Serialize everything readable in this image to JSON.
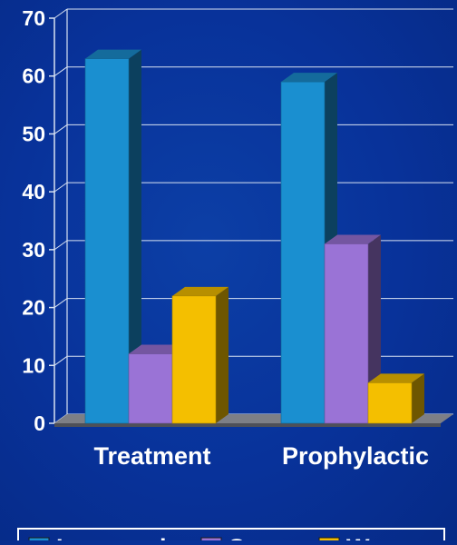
{
  "chart_data": {
    "type": "bar",
    "style": "3d-clustered-column",
    "categories": [
      "Treatment",
      "Prophylactic"
    ],
    "series": [
      {
        "name": "Improved",
        "values": [
          63,
          59
        ],
        "color": "#1a8fd0"
      },
      {
        "name": "Same",
        "values": [
          12,
          31
        ],
        "color": "#9a73d6"
      },
      {
        "name": "Worse",
        "values": [
          22,
          7
        ],
        "color": "#f4bf00"
      }
    ],
    "title": "",
    "xlabel": "",
    "ylabel": "",
    "ylim": [
      0,
      70
    ],
    "yticks": [
      "0",
      "10",
      "20",
      "30",
      "40",
      "50",
      "60",
      "70"
    ],
    "grid": true,
    "legend_position": "bottom",
    "colors": {
      "background": "#0a3a9e",
      "axis": "#d8e2f2",
      "text": "#ffffff"
    }
  }
}
